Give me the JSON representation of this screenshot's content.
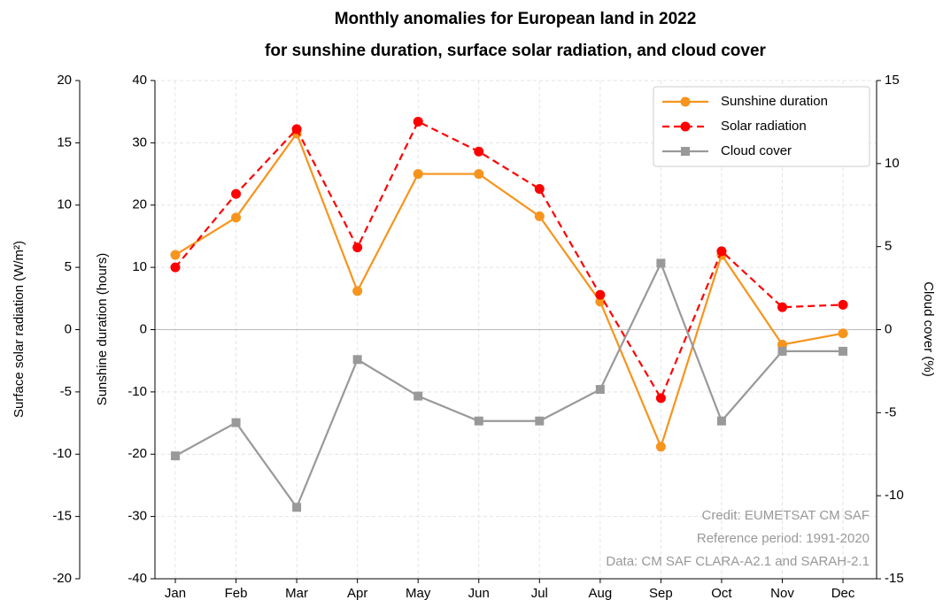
{
  "chart_data": {
    "type": "line",
    "title": "Monthly anomalies for European land in 2022",
    "subtitle": "for sunshine duration, surface solar radiation, and cloud cover",
    "categories": [
      "Jan",
      "Feb",
      "Mar",
      "Apr",
      "May",
      "Jun",
      "Jul",
      "Aug",
      "Sep",
      "Oct",
      "Nov",
      "Dec"
    ],
    "series": [
      {
        "name": "Sunshine duration",
        "color": "#f7941d",
        "style": "solid",
        "marker": "circle",
        "axis": "y",
        "values": [
          12,
          18,
          31.5,
          6.2,
          25,
          25,
          18.2,
          4.5,
          -18.8,
          12,
          -2.4,
          -0.6
        ]
      },
      {
        "name": "Solar radiation",
        "color": "#ff0000",
        "style": "dashed",
        "marker": "circle",
        "axis": "y3",
        "values": [
          5.0,
          10.9,
          16.1,
          6.6,
          16.7,
          14.3,
          11.3,
          2.8,
          -5.5,
          6.3,
          1.8,
          2.0
        ]
      },
      {
        "name": "Cloud cover",
        "color": "#999999",
        "style": "solid",
        "marker": "square",
        "axis": "y2",
        "values": [
          -7.6,
          -5.6,
          -10.7,
          -1.8,
          -4.0,
          -5.5,
          -5.5,
          -3.6,
          4.0,
          -5.5,
          -1.3,
          -1.3
        ]
      }
    ],
    "ylabel": "Sunshine duration (hours)",
    "ylim": [
      -40,
      40
    ],
    "yticks": [
      -40,
      -30,
      -20,
      -10,
      0,
      10,
      20,
      30,
      40
    ],
    "y2label": "Cloud cover (%)",
    "y2lim": [
      -15,
      15
    ],
    "y2ticks": [
      -15,
      -10,
      -5,
      0,
      5,
      10,
      15
    ],
    "y3label": "Surface solar radiation (W/m²)",
    "y3lim": [
      -20,
      20
    ],
    "y3ticks": [
      -20,
      -15,
      -10,
      -5,
      0,
      5,
      10,
      15,
      20
    ],
    "grid": true,
    "legend": "upper right",
    "annotations": [
      "Credit: EUMETSAT CM SAF",
      "Reference period: 1991-2020",
      "Data: CM SAF CLARA-A2.1 and SARAH-2.1"
    ]
  }
}
